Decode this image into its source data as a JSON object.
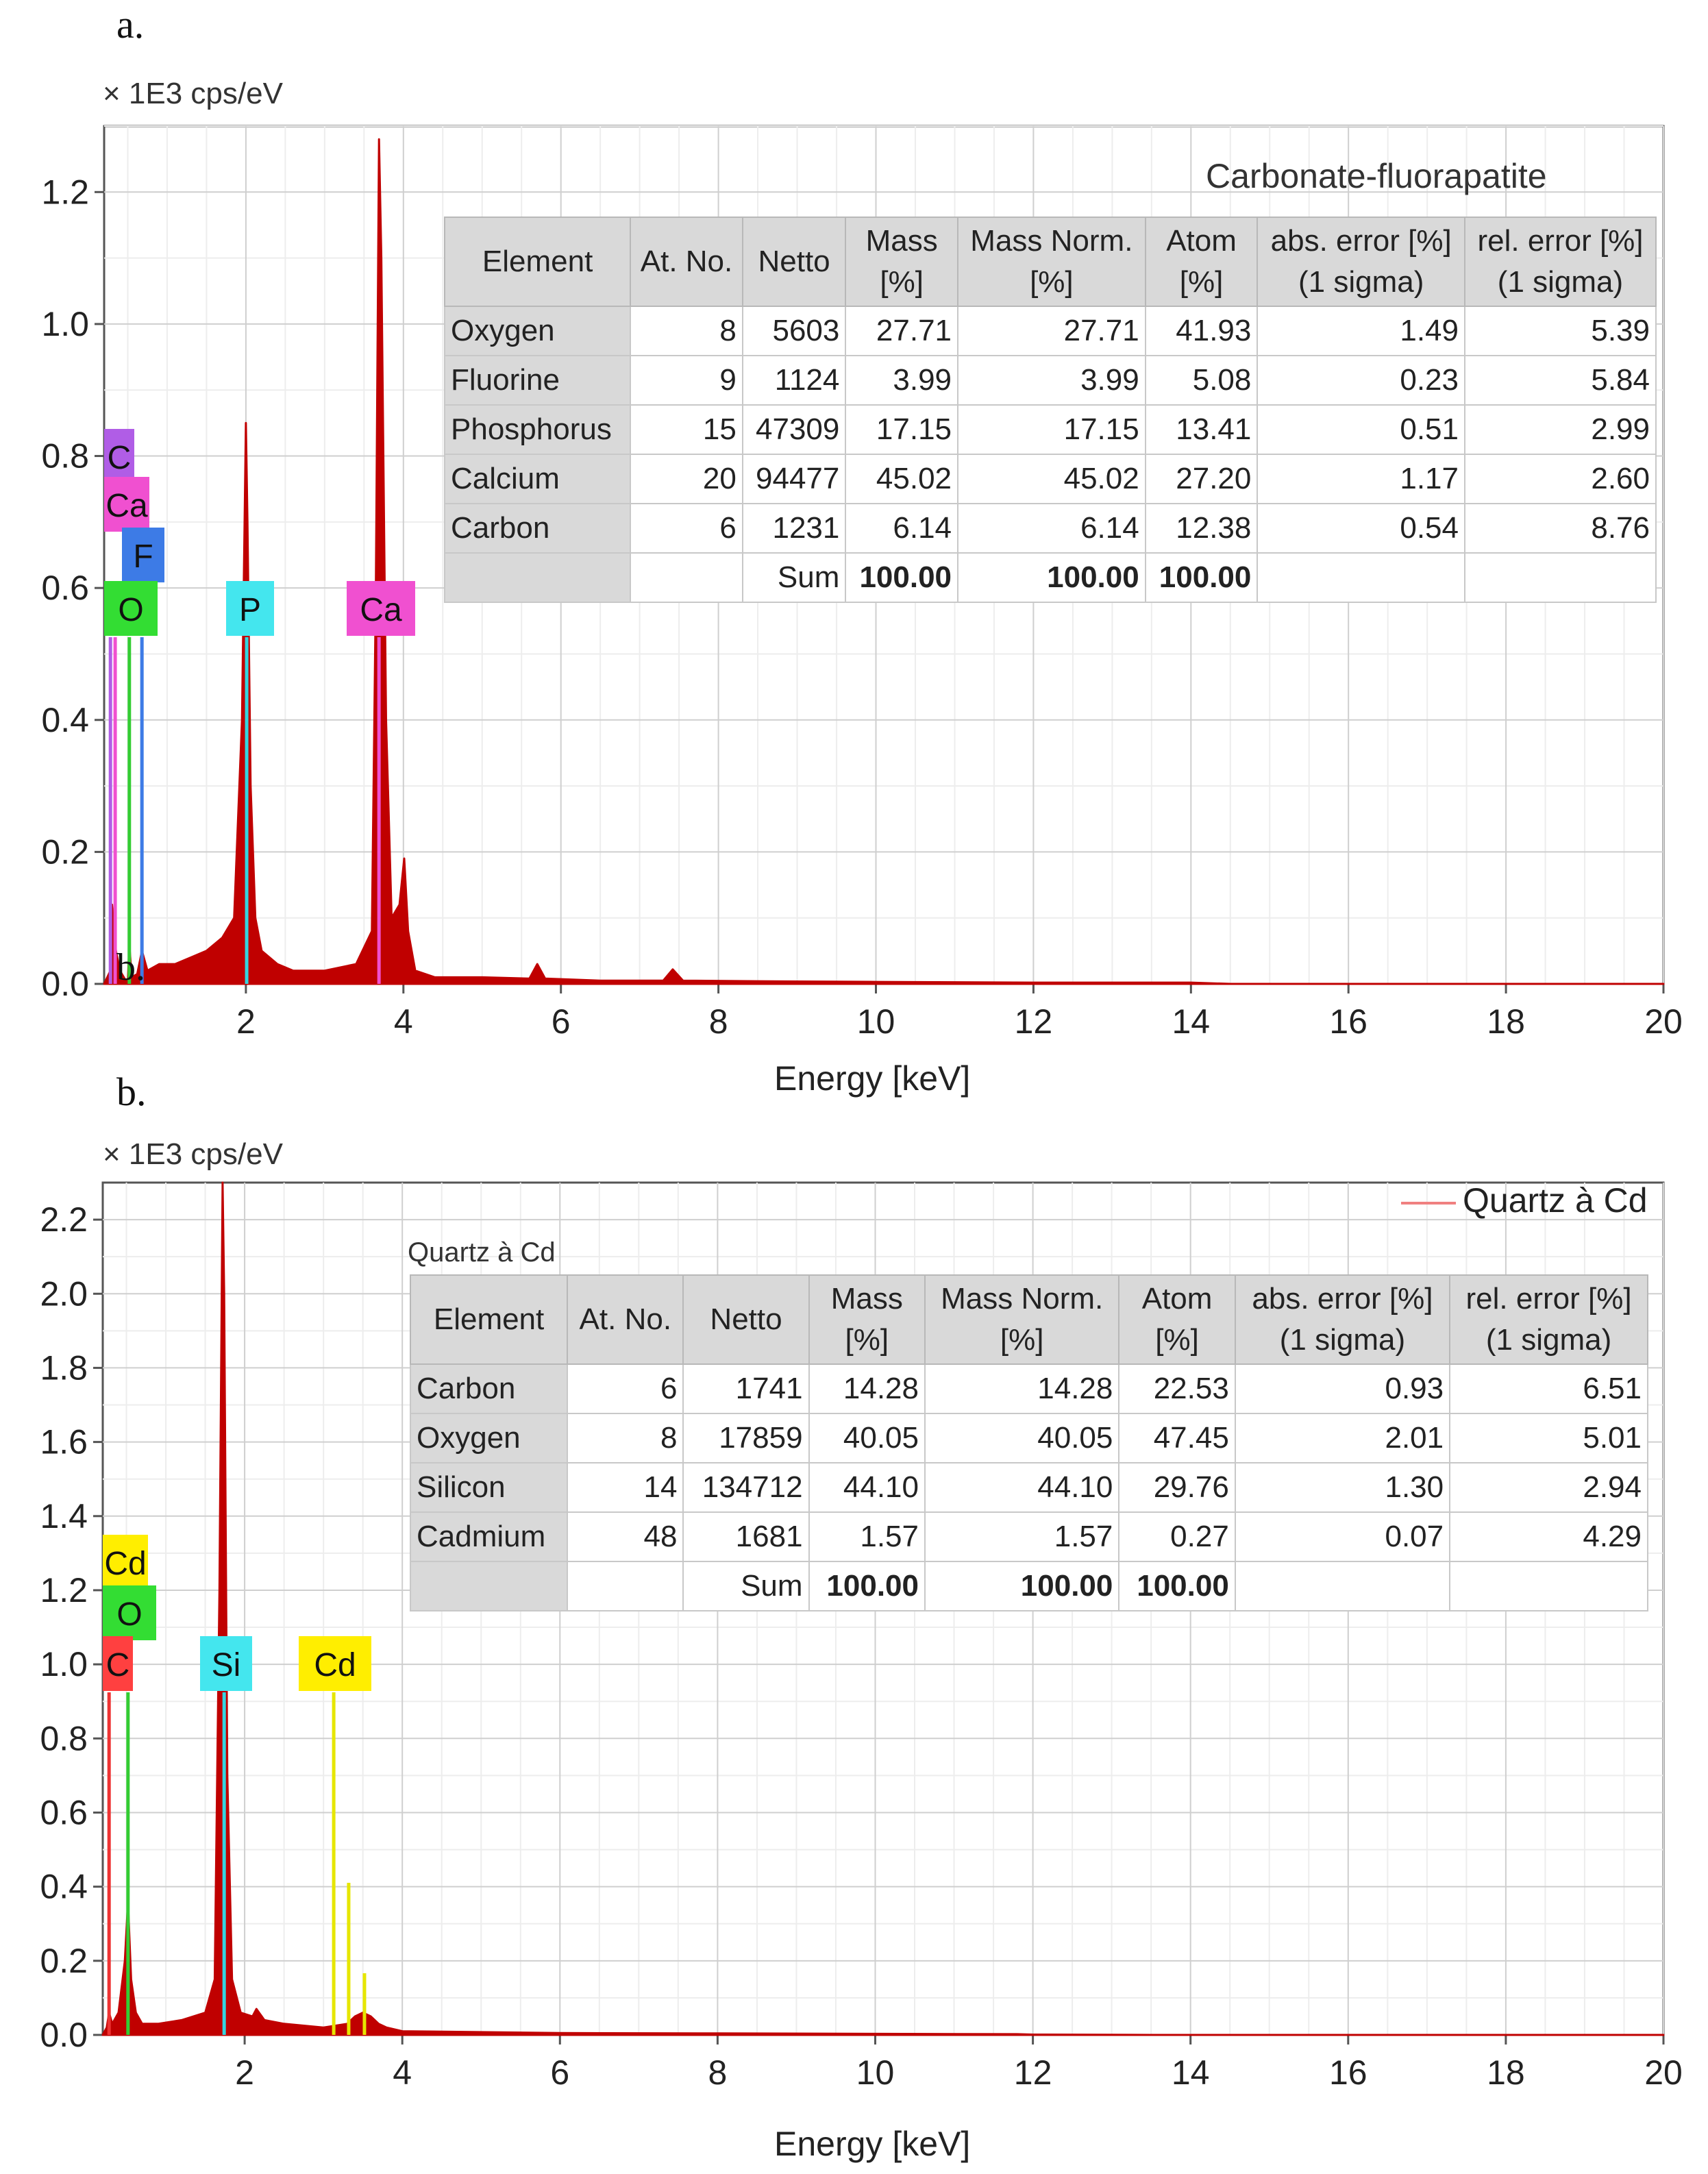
{
  "panels": {
    "a": {
      "label": "a.",
      "overlay_label": "b.",
      "unit": "× 1E3 cps/eV",
      "sample_title": "Carbonate-fluorapatite",
      "table": {
        "headers": [
          "Element",
          "At. No.",
          "Netto",
          "Mass\n[%]",
          "Mass Norm.\n[%]",
          "Atom\n[%]",
          "abs. error [%]\n(1 sigma)",
          "rel. error [%]\n(1 sigma)"
        ],
        "rows": [
          [
            "Oxygen",
            "8",
            "5603",
            "27.71",
            "27.71",
            "41.93",
            "1.49",
            "5.39"
          ],
          [
            "Fluorine",
            "9",
            "1124",
            "3.99",
            "3.99",
            "5.08",
            "0.23",
            "5.84"
          ],
          [
            "Phosphorus",
            "15",
            "47309",
            "17.15",
            "17.15",
            "13.41",
            "0.51",
            "2.99"
          ],
          [
            "Calcium",
            "20",
            "94477",
            "45.02",
            "45.02",
            "27.20",
            "1.17",
            "2.60"
          ],
          [
            "Carbon",
            "6",
            "1231",
            "6.14",
            "6.14",
            "12.38",
            "0.54",
            "8.76"
          ]
        ],
        "sum": [
          "",
          "",
          "Sum",
          "100.00",
          "100.00",
          "100.00",
          "",
          ""
        ]
      }
    },
    "b": {
      "label": "b.",
      "unit": "× 1E3 cps/eV",
      "legend": "Quartz à Cd",
      "table_caption": "Quartz à Cd",
      "table": {
        "headers": [
          "Element",
          "At. No.",
          "Netto",
          "Mass\n[%]",
          "Mass Norm.\n[%]",
          "Atom\n[%]",
          "abs. error [%]\n(1 sigma)",
          "rel. error [%]\n(1 sigma)"
        ],
        "rows": [
          [
            "Carbon",
            "6",
            "1741",
            "14.28",
            "14.28",
            "22.53",
            "0.93",
            "6.51"
          ],
          [
            "Oxygen",
            "8",
            "17859",
            "40.05",
            "40.05",
            "47.45",
            "2.01",
            "5.01"
          ],
          [
            "Silicon",
            "14",
            "134712",
            "44.10",
            "44.10",
            "29.76",
            "1.30",
            "2.94"
          ],
          [
            "Cadmium",
            "48",
            "1681",
            "1.57",
            "1.57",
            "0.27",
            "0.07",
            "4.29"
          ]
        ],
        "sum": [
          "",
          "",
          "Sum",
          "100.00",
          "100.00",
          "100.00",
          "",
          ""
        ]
      }
    }
  },
  "chart_data": [
    {
      "type": "line",
      "title": "Carbonate-fluorapatite",
      "xlabel": "Energy [keV]",
      "ylabel": "× 1E3 cps/eV",
      "xlim": [
        0.2,
        20
      ],
      "ylim": [
        0,
        1.3
      ],
      "x_ticks": [
        2,
        4,
        6,
        8,
        10,
        12,
        14,
        16,
        18,
        20
      ],
      "y_ticks": [
        0.0,
        0.2,
        0.4,
        0.6,
        0.8,
        1.0,
        1.2
      ],
      "grid": true,
      "color": "#c00000",
      "x": [
        0.2,
        0.28,
        0.3,
        0.35,
        0.4,
        0.5,
        0.52,
        0.55,
        0.62,
        0.68,
        0.75,
        0.9,
        1.1,
        1.3,
        1.5,
        1.7,
        1.85,
        1.95,
        2.0,
        2.02,
        2.06,
        2.12,
        2.2,
        2.4,
        2.6,
        3.0,
        3.4,
        3.6,
        3.65,
        3.69,
        3.72,
        3.78,
        3.85,
        3.95,
        4.01,
        4.06,
        4.15,
        4.4,
        5.0,
        5.6,
        5.7,
        5.8,
        6.5,
        7.3,
        7.42,
        7.55,
        8.5,
        10.0,
        12.0,
        14.0,
        14.5,
        16,
        18,
        20
      ],
      "y": [
        0.0,
        0.02,
        0.12,
        0.05,
        0.02,
        0.0,
        0.06,
        0.01,
        0.015,
        0.05,
        0.02,
        0.03,
        0.03,
        0.04,
        0.05,
        0.07,
        0.1,
        0.4,
        0.85,
        0.7,
        0.3,
        0.1,
        0.05,
        0.03,
        0.02,
        0.02,
        0.03,
        0.08,
        0.6,
        1.28,
        1.1,
        0.4,
        0.1,
        0.12,
        0.19,
        0.08,
        0.02,
        0.01,
        0.01,
        0.008,
        0.03,
        0.008,
        0.005,
        0.005,
        0.022,
        0.005,
        0.004,
        0.003,
        0.002,
        0.002,
        0.0,
        0.0,
        0.0,
        0.0
      ],
      "element_lines": [
        {
          "label": "C",
          "x": 0.28,
          "color": "#b05de6"
        },
        {
          "label": "Ca",
          "x": 0.34,
          "color": "#f050d0"
        },
        {
          "label": "O",
          "x": 0.52,
          "color": "#33cc33"
        },
        {
          "label": "F",
          "x": 0.68,
          "color": "#3d7be6"
        },
        {
          "label": "P",
          "x": 2.01,
          "color": "#33d6e0"
        },
        {
          "label": "Ca",
          "x": 3.69,
          "color": "#f050d0"
        }
      ],
      "markers": [
        {
          "label": "C",
          "color": "#b05de6"
        },
        {
          "label": "Ca",
          "color": "#f050d0"
        },
        {
          "label": "F",
          "color": "#3d7be6"
        },
        {
          "label": "O",
          "color": "#33dd33"
        },
        {
          "label": "P",
          "color": "#44e6ee"
        },
        {
          "label": "Ca",
          "color": "#f050d0"
        }
      ]
    },
    {
      "type": "line",
      "title": "Quartz à Cd",
      "xlabel": "Energy [keV]",
      "ylabel": "× 1E3 cps/eV",
      "xlim": [
        0.2,
        20
      ],
      "ylim": [
        0,
        2.3
      ],
      "x_ticks": [
        2,
        4,
        6,
        8,
        10,
        12,
        14,
        16,
        18,
        20
      ],
      "y_ticks": [
        0.0,
        0.2,
        0.4,
        0.6,
        0.8,
        1.0,
        1.2,
        1.4,
        1.6,
        1.8,
        2.0,
        2.2
      ],
      "grid": true,
      "color": "#c00000",
      "x": [
        0.2,
        0.25,
        0.28,
        0.32,
        0.4,
        0.48,
        0.52,
        0.56,
        0.62,
        0.7,
        0.9,
        1.2,
        1.5,
        1.62,
        1.68,
        1.72,
        1.74,
        1.78,
        1.84,
        1.95,
        2.1,
        2.15,
        2.25,
        2.5,
        3.0,
        3.3,
        3.4,
        3.5,
        3.6,
        3.7,
        3.8,
        4.0,
        6.0,
        8.0,
        10.0,
        11.8,
        12.0,
        13.5,
        14.0,
        16,
        18,
        20
      ],
      "y": [
        0.0,
        0.02,
        0.06,
        0.03,
        0.06,
        0.2,
        0.36,
        0.15,
        0.06,
        0.03,
        0.03,
        0.04,
        0.06,
        0.15,
        1.2,
        2.3,
        2.0,
        0.7,
        0.15,
        0.06,
        0.05,
        0.07,
        0.04,
        0.03,
        0.02,
        0.03,
        0.05,
        0.06,
        0.05,
        0.03,
        0.02,
        0.01,
        0.005,
        0.004,
        0.003,
        0.002,
        0.001,
        0.0,
        0.0,
        0.0,
        0.0,
        0.0
      ],
      "element_lines": [
        {
          "label": "C",
          "x": 0.28,
          "color": "#ee3333"
        },
        {
          "label": "O",
          "x": 0.52,
          "color": "#33cc33"
        },
        {
          "label": "Si",
          "x": 1.74,
          "color": "#33d6e0"
        },
        {
          "label": "Cd",
          "x": 3.13,
          "color": "#e6e600"
        },
        {
          "label": "Cd",
          "x": 3.32,
          "color": "#e6e600"
        },
        {
          "label": "Cd",
          "x": 3.52,
          "color": "#e6e600"
        }
      ],
      "markers": [
        {
          "label": "Cd",
          "color": "#ffee00"
        },
        {
          "label": "O",
          "color": "#33dd33"
        },
        {
          "label": "C",
          "color": "#ff4040"
        },
        {
          "label": "Si",
          "color": "#44e6ee"
        },
        {
          "label": "Cd",
          "color": "#ffee00"
        }
      ]
    }
  ]
}
